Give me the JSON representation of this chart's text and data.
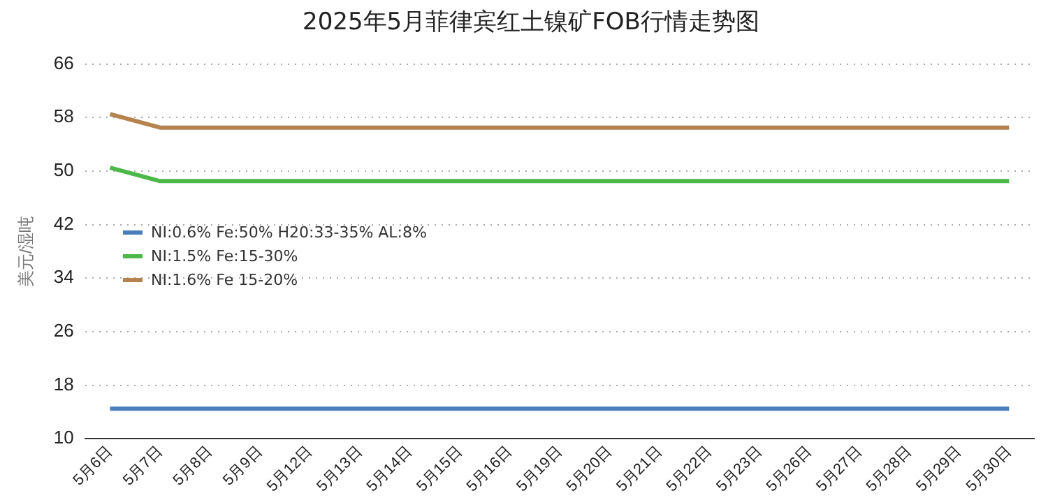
{
  "chart_data": {
    "type": "line",
    "title": "2025年5月菲律宾红土镍矿FOB行情走势图",
    "ylabel": "美元/湿吨",
    "categories": [
      "5月6日",
      "5月7日",
      "5月8日",
      "5月9日",
      "5月12日",
      "5月13日",
      "5月14日",
      "5月15日",
      "5月16日",
      "5月19日",
      "5月20日",
      "5月21日",
      "5月22日",
      "5月23日",
      "5月26日",
      "5月27日",
      "5月28日",
      "5月29日",
      "5月30日"
    ],
    "series": [
      {
        "name": "NI:0.6% Fe:50% H20:33-35% AL:8%",
        "color": "#4a7ebb",
        "values": [
          14.5,
          14.5,
          14.5,
          14.5,
          14.5,
          14.5,
          14.5,
          14.5,
          14.5,
          14.5,
          14.5,
          14.5,
          14.5,
          14.5,
          14.5,
          14.5,
          14.5,
          14.5,
          14.5
        ]
      },
      {
        "name": "NI:1.5% Fe:15-30%",
        "color": "#4cb848",
        "values": [
          50.5,
          48.5,
          48.5,
          48.5,
          48.5,
          48.5,
          48.5,
          48.5,
          48.5,
          48.5,
          48.5,
          48.5,
          48.5,
          48.5,
          48.5,
          48.5,
          48.5,
          48.5,
          48.5
        ]
      },
      {
        "name": "NI:1.6% Fe 15-20%",
        "color": "#b5834f",
        "values": [
          58.5,
          56.5,
          56.5,
          56.5,
          56.5,
          56.5,
          56.5,
          56.5,
          56.5,
          56.5,
          56.5,
          56.5,
          56.5,
          56.5,
          56.5,
          56.5,
          56.5,
          56.5,
          56.5
        ]
      }
    ],
    "ylim": [
      10,
      66
    ],
    "yticks": [
      10,
      18,
      26,
      34,
      42,
      50,
      58,
      66
    ],
    "grid": "y",
    "legend": "left",
    "marker": "none",
    "line_style": "solid"
  }
}
